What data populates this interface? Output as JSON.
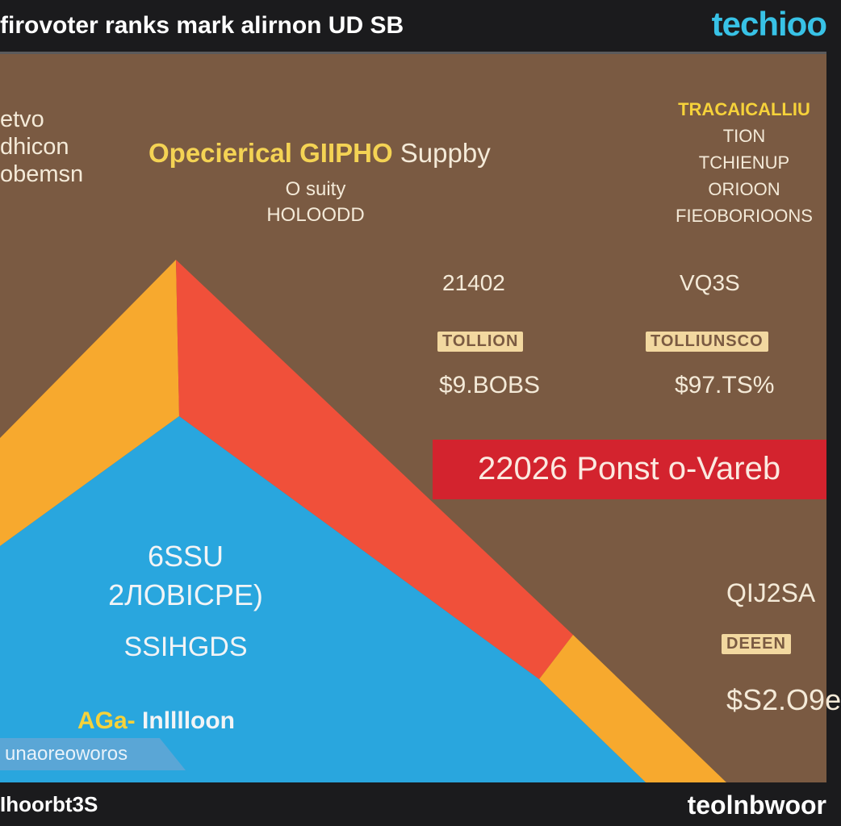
{
  "header": {
    "title": "firovoter ranks mark alirnon UD SB",
    "brand": "techioo"
  },
  "left_labels": [
    "etvo",
    "dhicon",
    "obemsn"
  ],
  "center": {
    "title_part1": "Opecierical GIIPHO",
    "title_part2": "Suppby",
    "sub_line1": "O  suity",
    "sub_line2": "HOLOODD"
  },
  "right_labels": [
    "TRACAICALLIU",
    "TION",
    "TCHIENUP",
    "ORIOON",
    "FIEOBORIOONS"
  ],
  "stats": [
    {
      "year": "21402",
      "box": "TOLLION",
      "value": "$9.BOBS"
    },
    {
      "year": "VQ3S",
      "box": "TOLLIUNSCO",
      "value": "$97.TS%"
    }
  ],
  "banner": {
    "text": "22026  Ponst o-Vareb"
  },
  "pyramid_text": {
    "line1": "6SSU",
    "line2": "2ЛOBICPE)",
    "line3": "SSIHGDS",
    "line4_a": "AGa-",
    "line4_b": "Inlllloon",
    "tag": "unaoreoworos"
  },
  "bottom_right_stats": {
    "line1": "QIJ2SA",
    "box": "DEEEN",
    "value": "$S2.O9e"
  },
  "footer": {
    "left": "Ihoorbt3S",
    "right": "teolnbwoor"
  },
  "colors": {
    "background_brown": "#7a5a42",
    "pyramid_orange": "#f7a92e",
    "pyramid_red": "#f0503a",
    "pyramid_blue": "#29a6de",
    "banner_red": "#d3232e",
    "brand_cyan": "#38c2e6"
  }
}
